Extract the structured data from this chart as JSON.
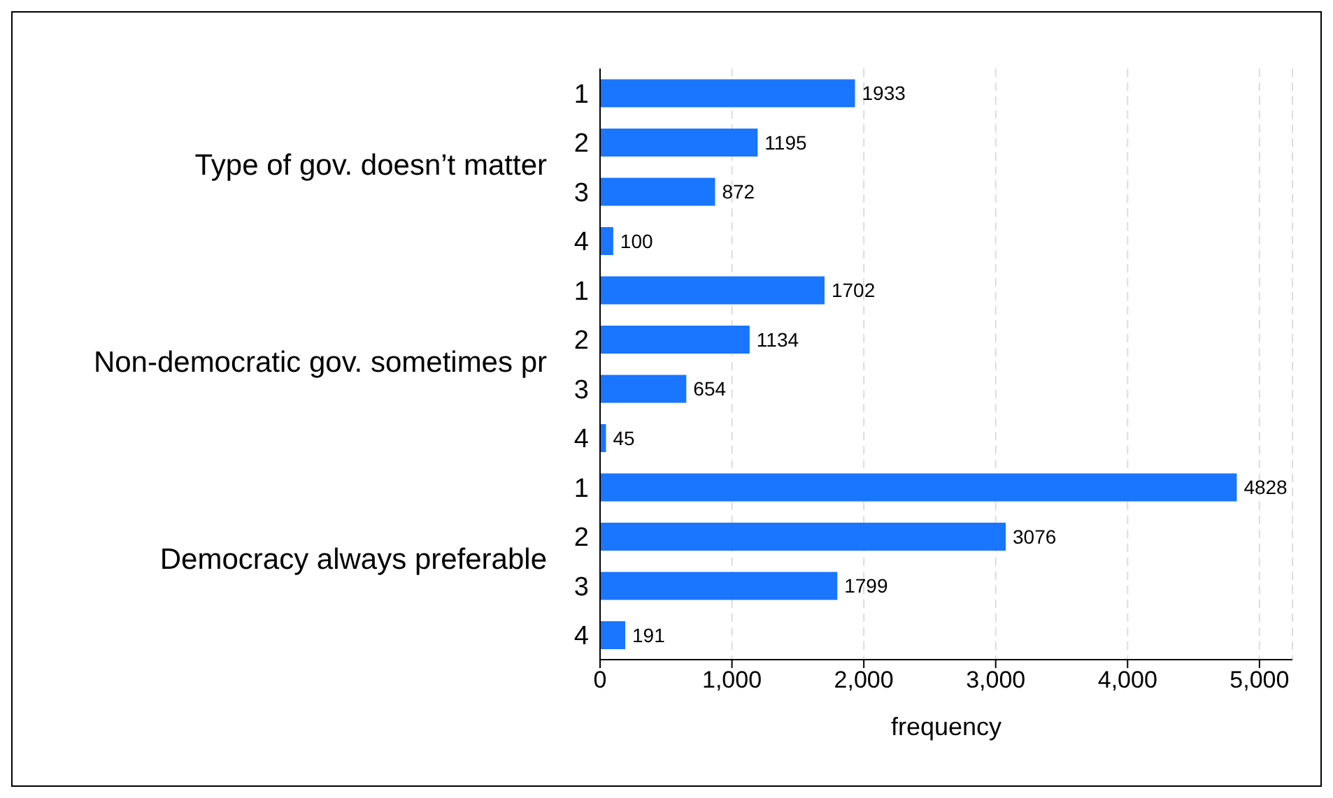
{
  "chart_data": {
    "type": "bar",
    "orientation": "horizontal",
    "xlabel": "frequency",
    "categories": [
      "1",
      "2",
      "3",
      "4",
      "1",
      "2",
      "3",
      "4",
      "1",
      "2",
      "3",
      "4"
    ],
    "values": [
      1933,
      1195,
      872,
      100,
      1702,
      1134,
      654,
      45,
      4828,
      3076,
      1799,
      191
    ],
    "color": "#1a75ff",
    "data_labels": true,
    "grid": "x",
    "xlim": [
      0,
      5250
    ],
    "xticks": [
      0,
      {
        "value": 1000,
        "label": "1,000"
      },
      {
        "value": 2000,
        "label": "2,000"
      },
      {
        "value": 3000,
        "label": "3,000"
      },
      {
        "value": 4000,
        "label": "4,000"
      },
      {
        "value": 5000,
        "label": "5,000"
      }
    ],
    "annotations": [
      "Type of gov. doesn’t matter",
      "Non-democratic gov. sometimes pr",
      "Democracy always preferable"
    ]
  }
}
